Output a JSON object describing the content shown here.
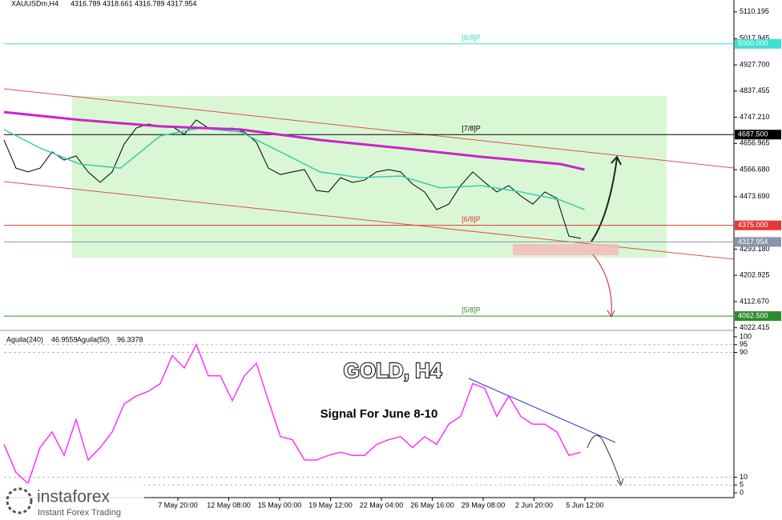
{
  "header": {
    "symbol": "XAUUSDm,H4",
    "open": 4316.789,
    "high": 4318.661,
    "low": 4316.789,
    "close": 4317.954
  },
  "chart_data": [
    {
      "type": "line",
      "ylim": [
        4016,
        5151
      ],
      "yticks": [
        5110.195,
        5017.945,
        {
          "value": 4927.7,
          "label": "4927.700"
        },
        4837.455,
        {
          "value": 4747.21,
          "label": "4747.210"
        },
        4656.965,
        {
          "value": 4566.68,
          "label": "4566.680"
        },
        {
          "value": 4473.69,
          "label": "4473.690"
        },
        {
          "value": 4293.18,
          "label": "4293.180"
        },
        4202.925,
        {
          "value": 4112.67,
          "label": "4112.670"
        },
        4022.415
      ],
      "levels": [
        {
          "value": 5000,
          "label": "5000.000",
          "murrey": "[8/8]P",
          "color": "#40e0d0"
        },
        {
          "value": 4687.5,
          "label": "4687.500",
          "murrey": "[7/8]P",
          "color": "#000000"
        },
        {
          "value": 4375,
          "label": "4375.000",
          "murrey": "[6/8]P",
          "color": "#e53935"
        },
        {
          "value": 4317.954,
          "color": "#8a95a8"
        },
        {
          "value": 4062.5,
          "label": "4062.500",
          "murrey": "[5/8]P",
          "color": "#2e8b2e"
        }
      ],
      "series": [
        {
          "name": "price",
          "color": "#000000",
          "x": [
            0,
            1,
            2,
            3,
            4,
            5,
            6,
            7,
            8,
            9,
            10,
            11,
            12,
            13,
            14,
            15,
            16,
            17,
            18,
            19,
            20,
            21,
            22,
            23,
            24,
            25,
            26,
            27,
            28,
            29,
            30,
            31,
            32,
            33,
            34,
            35,
            36,
            37,
            38,
            39,
            40,
            41,
            42,
            43,
            44,
            45,
            46,
            47,
            48
          ],
          "values": [
            4669,
            4572,
            4559,
            4572,
            4628,
            4600,
            4614,
            4559,
            4523,
            4559,
            4655,
            4710,
            4724,
            4716,
            4716,
            4688,
            4738,
            4710,
            4705,
            4710,
            4696,
            4661,
            4572,
            4550,
            4559,
            4567,
            4495,
            4490,
            4539,
            4523,
            4531,
            4559,
            4567,
            4559,
            4517,
            4490,
            4429,
            4448,
            4512,
            4559,
            4523,
            4490,
            4512,
            4476,
            4448,
            4490,
            4468,
            4338,
            4330
          ]
        },
        {
          "name": "ma-fast",
          "color": "#3cc9b4",
          "x": [
            0,
            3,
            6.3,
            9.7,
            13,
            16.3,
            19.7,
            23,
            26.3,
            29.7,
            33,
            36.3,
            39.7,
            43,
            46.3,
            48.3
          ],
          "values": [
            4705,
            4641,
            4586,
            4572,
            4683,
            4710,
            4696,
            4628,
            4559,
            4539,
            4545,
            4504,
            4512,
            4490,
            4462,
            4429
          ]
        },
        {
          "name": "ma-slow",
          "color": "#cc22cc",
          "x": [
            0,
            6.3,
            13,
            19.7,
            26.3,
            33,
            39.7,
            46.3,
            48.3
          ],
          "values": [
            4765,
            4738,
            4716,
            4705,
            4669,
            4641,
            4611,
            4586,
            4567
          ]
        }
      ]
    },
    {
      "type": "line",
      "header": [
        {
          "name": "Aguila(240)",
          "value": 46.9559
        },
        {
          "name": "Aguila(50)",
          "value": 96.3378
        }
      ],
      "ylim": [
        0,
        100
      ],
      "yticks": [
        100,
        95,
        90,
        10,
        5,
        0
      ],
      "series": [
        {
          "name": "aguila",
          "color": "#ff33ff",
          "values": [
            31,
            13,
            6,
            29,
            39,
            24,
            47,
            21,
            29,
            39,
            57,
            62,
            65,
            70,
            88,
            80,
            95,
            75,
            75,
            59,
            75,
            83,
            59,
            36,
            34,
            21,
            21,
            24,
            26,
            24,
            24,
            31,
            34,
            36,
            29,
            36,
            31,
            44,
            49,
            70,
            67,
            49,
            62,
            49,
            44,
            44,
            39,
            24,
            26
          ]
        }
      ],
      "title": "GOLD, H4",
      "subtitle": "Signal For June 8-10"
    }
  ],
  "xticks": [
    "7 May 20:00",
    "12 May 08:00",
    "15 May 00:00",
    "19 May 12:00",
    "22 May 04:00",
    "26 May 16:00",
    "29 May 08:00",
    "2 Jun 20:00",
    "5 Jun 12:00"
  ],
  "logo": {
    "name": "instaforex",
    "tagline": "Instant Forex Trading"
  }
}
